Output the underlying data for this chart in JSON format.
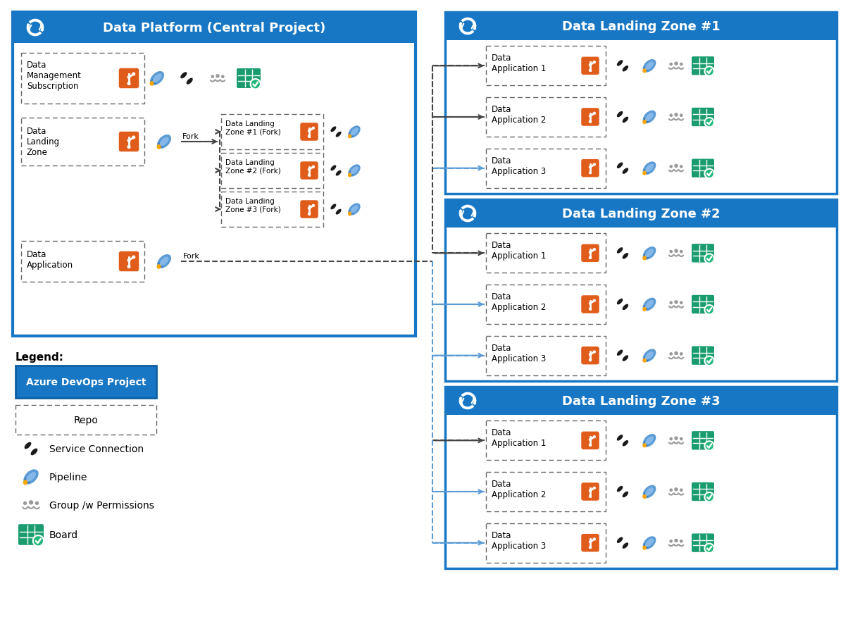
{
  "bg_color": "#ffffff",
  "blue_header": "#1777c4",
  "orange": "#e05c1a",
  "teal": "#1a9c6e",
  "teal_light": "#21b87a",
  "gray": "#888888",
  "black": "#1a1a1a",
  "dashed_black": "#444444",
  "dashed_blue": "#5b9bd5",
  "white": "#ffffff",
  "left_panel_title": "Data Platform (Central Project)",
  "right_zones": [
    "Data Landing Zone #1",
    "Data Landing Zone #2",
    "Data Landing Zone #3"
  ],
  "fork_labels": [
    "Data Landing\nZone #1 (Fork)",
    "Data Landing\nZone #2 (Fork)",
    "Data Landing\nZone #3 (Fork)"
  ],
  "app_labels": [
    "Data\nApplication 1",
    "Data\nApplication 2",
    "Data\nApplication 3"
  ],
  "legend_title": "Legend:",
  "legend_items": [
    "Azure DevOps Project",
    "Repo",
    "Service Connection",
    "Pipeline",
    "Group /w Permissions",
    "Board"
  ]
}
